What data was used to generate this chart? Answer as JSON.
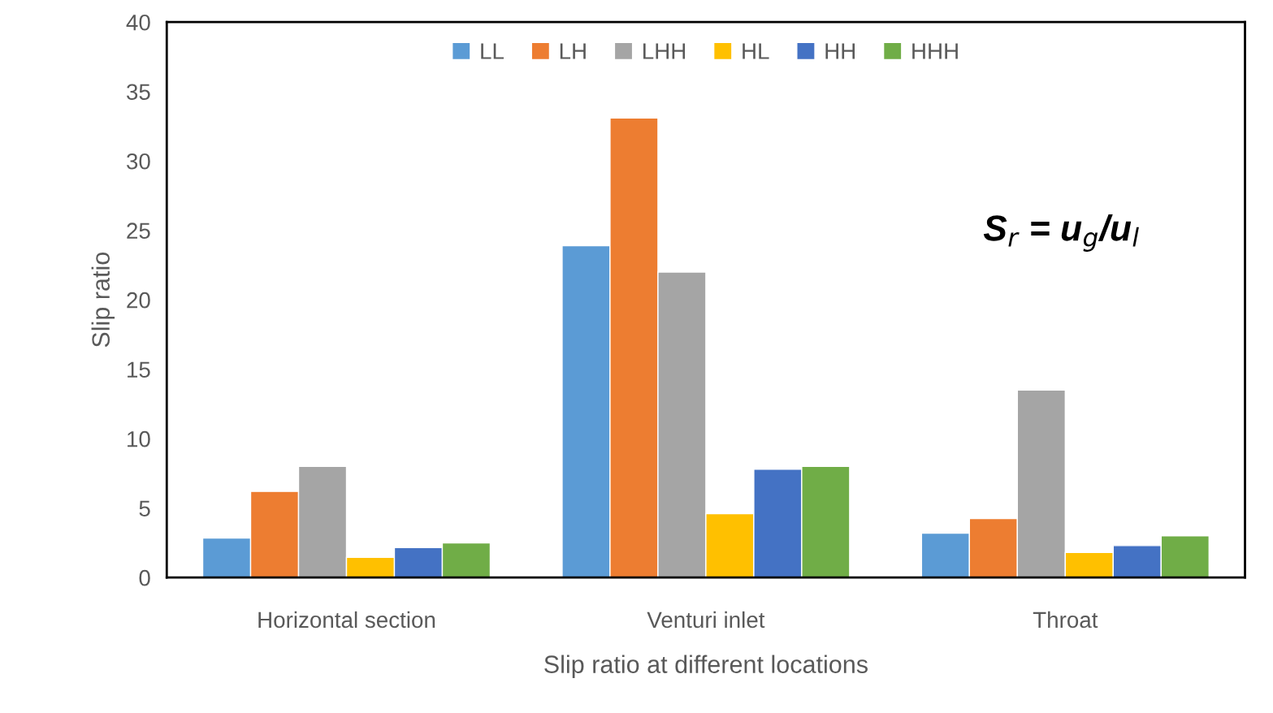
{
  "chart_data": {
    "type": "bar",
    "xlabel": "Slip ratio at different locations",
    "ylabel": "Slip ratio",
    "categories": [
      "Horizontal section",
      "Venturi inlet",
      "Throat"
    ],
    "series": [
      {
        "name": "LL",
        "color": "#5b9bd5",
        "values": [
          2.85,
          23.9,
          3.2
        ]
      },
      {
        "name": "LH",
        "color": "#ed7d31",
        "values": [
          6.2,
          33.1,
          4.25
        ]
      },
      {
        "name": "LHH",
        "color": "#a5a5a5",
        "values": [
          8.0,
          22.0,
          13.5
        ]
      },
      {
        "name": "HL",
        "color": "#ffc000",
        "values": [
          1.45,
          4.6,
          1.8
        ]
      },
      {
        "name": "HH",
        "color": "#4472c4",
        "values": [
          2.15,
          7.8,
          2.3
        ]
      },
      {
        "name": "HHH",
        "color": "#70ad47",
        "values": [
          2.5,
          8.0,
          3.0
        ]
      }
    ],
    "ylim": [
      0,
      40
    ],
    "yticks": [
      0,
      5,
      10,
      15,
      20,
      25,
      30,
      35,
      40
    ],
    "grid": false,
    "legend": "top",
    "annotations": [
      "S$_{r}$ = u$_{g}$/u$_{l}$"
    ]
  }
}
